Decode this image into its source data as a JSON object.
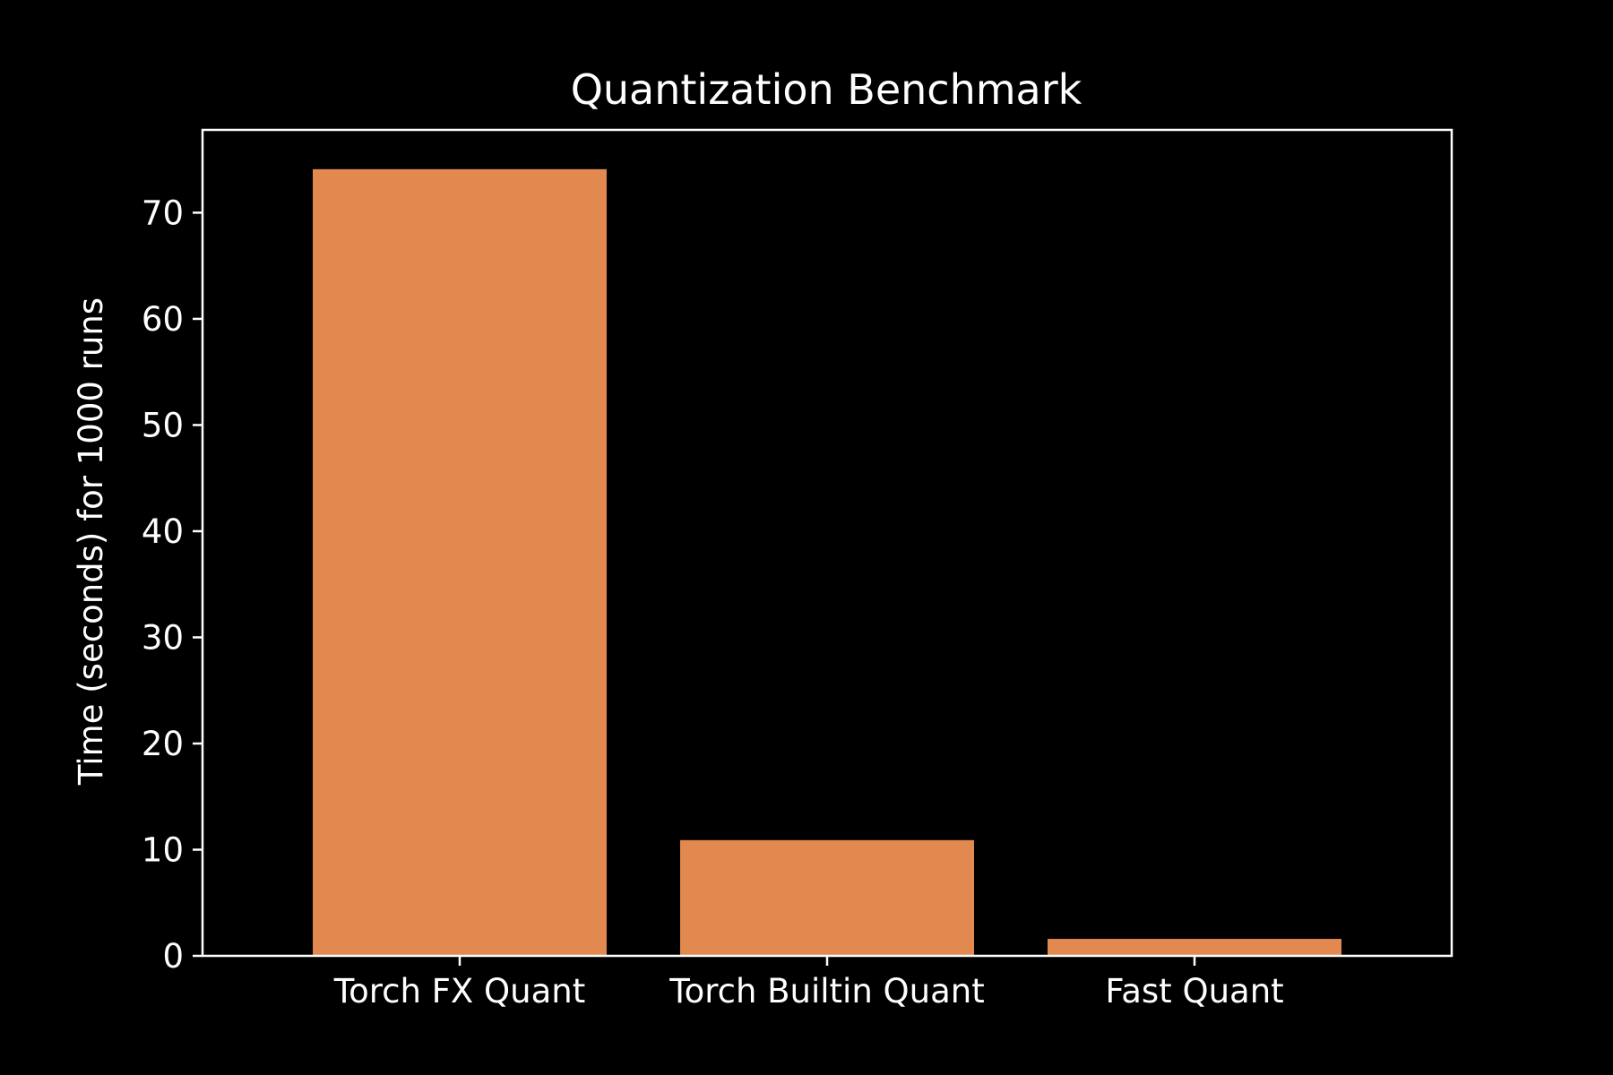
{
  "chart_data": {
    "type": "bar",
    "title": "Quantization Benchmark",
    "xlabel": "",
    "ylabel": "Time (seconds) for 1000 runs",
    "categories": [
      "Torch FX Quant",
      "Torch Builtin Quant",
      "Fast Quant"
    ],
    "values": [
      74.1,
      10.9,
      1.6
    ],
    "ylim": [
      0,
      77.8
    ],
    "yticks": [
      0,
      10,
      20,
      30,
      40,
      50,
      60,
      70
    ],
    "grid": false,
    "colors": {
      "bar": "#e1894f",
      "background": "#000000",
      "foreground": "#ffffff"
    }
  }
}
